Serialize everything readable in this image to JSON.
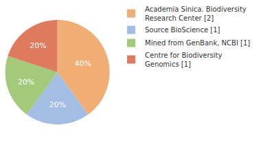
{
  "chart_data": {
    "type": "pie",
    "categories": [
      "Academia Sinica. Biodiversity Research Center [2]",
      "Source BioScience [1]",
      "Mined from GenBank, NCBI [1]",
      "Centre for Biodiversity Genomics [1]"
    ],
    "values": [
      40,
      20,
      20,
      20
    ],
    "value_labels": [
      "40%",
      "20%",
      "20%",
      "20%"
    ],
    "colors": [
      "#f0ae74",
      "#a4bde3",
      "#a3c97b",
      "#de7b5f"
    ],
    "data_labels": true,
    "legend": "upper right"
  }
}
